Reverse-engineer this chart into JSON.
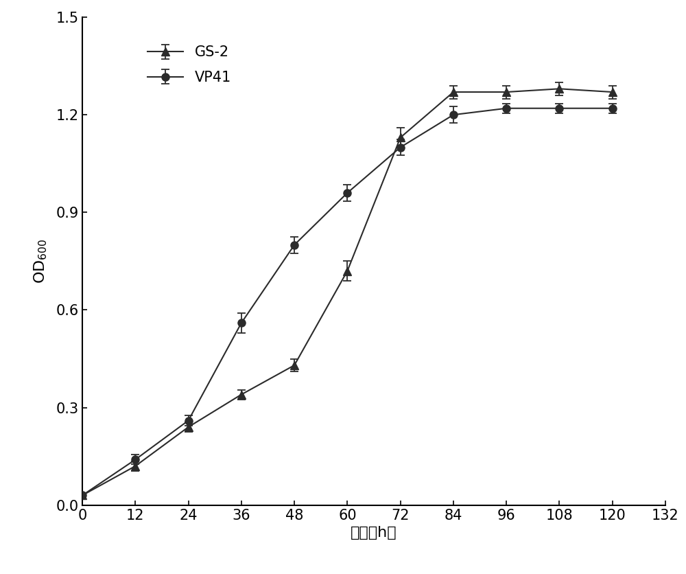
{
  "x": [
    0,
    12,
    24,
    36,
    48,
    60,
    72,
    84,
    96,
    108,
    120
  ],
  "gs2_y": [
    0.03,
    0.12,
    0.24,
    0.34,
    0.43,
    0.72,
    1.13,
    1.27,
    1.27,
    1.28,
    1.27
  ],
  "gs2_yerr": [
    0.005,
    0.015,
    0.015,
    0.015,
    0.02,
    0.03,
    0.03,
    0.02,
    0.02,
    0.02,
    0.02
  ],
  "vp41_y": [
    0.03,
    0.14,
    0.26,
    0.56,
    0.8,
    0.96,
    1.1,
    1.2,
    1.22,
    1.22,
    1.22
  ],
  "vp41_yerr": [
    0.005,
    0.015,
    0.015,
    0.03,
    0.025,
    0.025,
    0.025,
    0.025,
    0.015,
    0.015,
    0.015
  ],
  "xlabel": "时间（h）",
  "ylabel": "OD$_{600}$",
  "xlim": [
    0,
    132
  ],
  "ylim": [
    0.0,
    1.5
  ],
  "xticks": [
    0,
    12,
    24,
    36,
    48,
    60,
    72,
    84,
    96,
    108,
    120,
    132
  ],
  "yticks": [
    0.0,
    0.3,
    0.6,
    0.9,
    1.2,
    1.5
  ],
  "legend_gs2": "GS-2",
  "legend_vp41": "VP41",
  "line_color": "#2b2b2b",
  "bg_color": "#ffffff",
  "figsize": [
    10.0,
    8.36
  ],
  "dpi": 100
}
